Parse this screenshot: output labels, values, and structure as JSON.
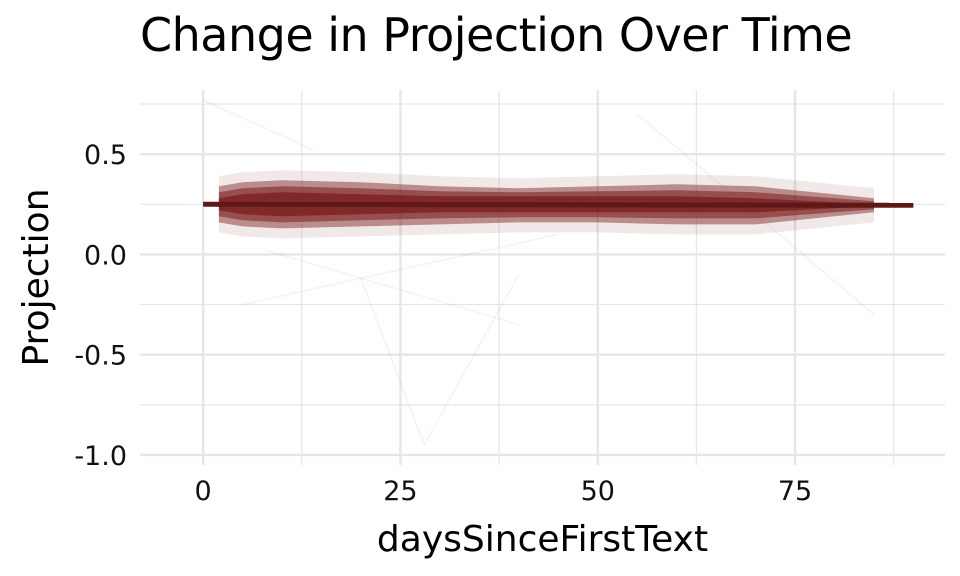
{
  "chart_data": {
    "type": "line",
    "title": "Change in Projection Over Time",
    "xlabel": "daysSinceFirstText",
    "ylabel": "Projection",
    "xlim": [
      -8,
      94
    ],
    "ylim": [
      -1.05,
      0.82
    ],
    "x_ticks": [
      0,
      25,
      50,
      75
    ],
    "x_tick_labels": [
      "0",
      "25",
      "50",
      "75"
    ],
    "x_minor_ticks": [
      12.5,
      37.5,
      62.5,
      87.5
    ],
    "y_ticks": [
      -1.0,
      -0.5,
      0.0,
      0.5
    ],
    "y_tick_labels": [
      "-1.0",
      "-0.5",
      "0.0",
      "0.5"
    ],
    "y_minor_ticks": [
      -0.75,
      -0.25,
      0.25,
      0.75
    ],
    "grid": true,
    "band": {
      "description": "many semi-transparent individual trajectories",
      "x": [
        2,
        5,
        10,
        20,
        30,
        40,
        50,
        60,
        70,
        80,
        85
      ],
      "lower": [
        0.16,
        0.14,
        0.13,
        0.14,
        0.15,
        0.16,
        0.16,
        0.15,
        0.15,
        0.19,
        0.21
      ],
      "upper": [
        0.34,
        0.36,
        0.37,
        0.36,
        0.34,
        0.33,
        0.34,
        0.35,
        0.34,
        0.3,
        0.28
      ],
      "core_lower": [
        0.22,
        0.2,
        0.19,
        0.2,
        0.21,
        0.21,
        0.21,
        0.21,
        0.21,
        0.23,
        0.24
      ],
      "core_upper": [
        0.28,
        0.3,
        0.31,
        0.3,
        0.29,
        0.29,
        0.29,
        0.29,
        0.28,
        0.26,
        0.25
      ]
    },
    "series": [
      {
        "x": [
          0,
          90
        ],
        "values": [
          0.25,
          0.245
        ]
      }
    ],
    "colors": {
      "trajectory": "#7a1c1c",
      "mean_line": "#5e1818",
      "grid": "#e6e6e6"
    }
  }
}
